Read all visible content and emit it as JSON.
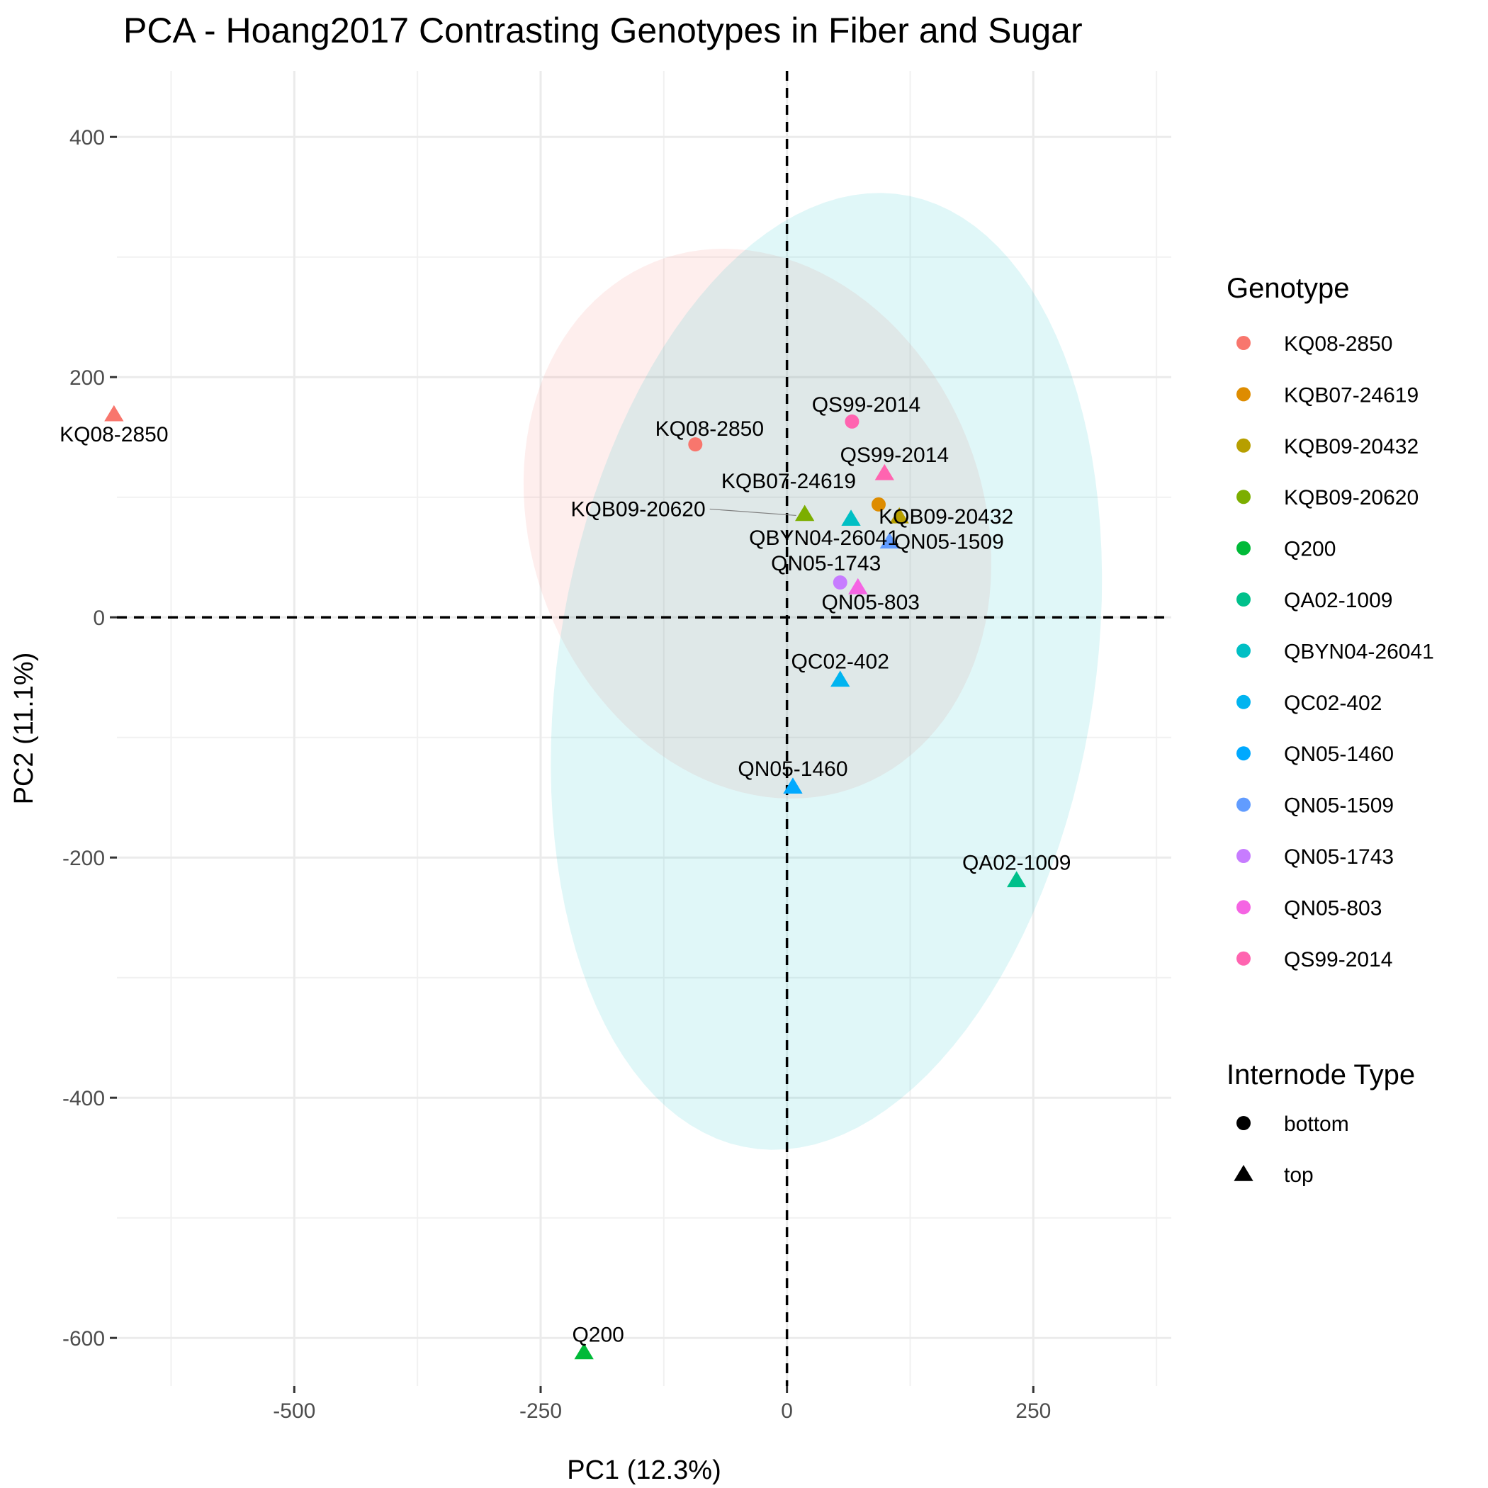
{
  "chart_data": {
    "type": "scatter",
    "title": "PCA - Hoang2017 Contrasting Genotypes in Fiber and Sugar",
    "xlabel": "PC1 (12.3%)",
    "ylabel": "PC2 (11.1%)",
    "xlim": [
      -680,
      390
    ],
    "ylim": [
      -640,
      455
    ],
    "x_ticks": [
      -500,
      -250,
      0,
      250
    ],
    "y_ticks": [
      -600,
      -400,
      -200,
      0,
      200,
      400
    ],
    "x_tick_labels": [
      "-500",
      "-250",
      "0",
      "250"
    ],
    "y_tick_labels": [
      "-600",
      "-400",
      "-200",
      "0",
      "200",
      "400"
    ],
    "grid": true,
    "reference_lines": {
      "x": 0,
      "y": 0,
      "style": "dashed"
    },
    "legend_position": "right",
    "genotype_legend": {
      "title": "Genotype",
      "entries": [
        {
          "name": "KQ08-2850",
          "color": "#F8766D"
        },
        {
          "name": "KQB07-24619",
          "color": "#DE8C00"
        },
        {
          "name": "KQB09-20432",
          "color": "#B79F00"
        },
        {
          "name": "KQB09-20620",
          "color": "#7CAE00"
        },
        {
          "name": "Q200",
          "color": "#00BA38"
        },
        {
          "name": "QA02-1009",
          "color": "#00C08B"
        },
        {
          "name": "QBYN04-26041",
          "color": "#00BFC4"
        },
        {
          "name": "QC02-402",
          "color": "#00B4F0"
        },
        {
          "name": "QN05-1460",
          "color": "#00A9FF"
        },
        {
          "name": "QN05-1509",
          "color": "#619CFF"
        },
        {
          "name": "QN05-1743",
          "color": "#C77CFF"
        },
        {
          "name": "QN05-803",
          "color": "#F564E3"
        },
        {
          "name": "QS99-2014",
          "color": "#FF64B0"
        }
      ]
    },
    "shape_legend": {
      "title": "Internode Type",
      "entries": [
        {
          "name": "bottom",
          "shape": "circle"
        },
        {
          "name": "top",
          "shape": "triangle"
        }
      ]
    },
    "ellipses": [
      {
        "group": "bottom",
        "color": "#F8766D",
        "center": [
          -30,
          78
        ],
        "rx": 250,
        "ry": 215,
        "rotation_deg": -38
      },
      {
        "group": "top",
        "color": "#00BFC4",
        "center": [
          40,
          -45
        ],
        "rx": 270,
        "ry": 405,
        "rotation_deg": -14
      }
    ],
    "points": [
      {
        "genotype": "KQ08-2850",
        "type": "top",
        "x": -683,
        "y": 169,
        "label": "KQ08-2850"
      },
      {
        "genotype": "KQ08-2850",
        "type": "bottom",
        "x": -93,
        "y": 144,
        "label": "KQ08-2850"
      },
      {
        "genotype": "QS99-2014",
        "type": "bottom",
        "x": 66,
        "y": 163,
        "label": "QS99-2014"
      },
      {
        "genotype": "QS99-2014",
        "type": "top",
        "x": 99,
        "y": 120,
        "label": "QS99-2014"
      },
      {
        "genotype": "KQB07-24619",
        "type": "bottom",
        "x": 93,
        "y": 94,
        "label": "KQB07-24619"
      },
      {
        "genotype": "KQB09-20620",
        "type": "top",
        "x": 18,
        "y": 86,
        "label": "KQB09-20620"
      },
      {
        "genotype": "QBYN04-26041",
        "type": "top",
        "x": 65,
        "y": 82,
        "label": "QBYN04-26041"
      },
      {
        "genotype": "KQB09-20432",
        "type": "top",
        "x": 114,
        "y": 84,
        "label": "KQB09-20432"
      },
      {
        "genotype": "QN05-1509",
        "type": "top",
        "x": 104,
        "y": 63,
        "label": "QN05-1509"
      },
      {
        "genotype": "QN05-1743",
        "type": "bottom",
        "x": 54,
        "y": 29,
        "label": "QN05-1743"
      },
      {
        "genotype": "QN05-803",
        "type": "top",
        "x": 72,
        "y": 25,
        "label": "QN05-803"
      },
      {
        "genotype": "QC02-402",
        "type": "top",
        "x": 54,
        "y": -52,
        "label": "QC02-402"
      },
      {
        "genotype": "QN05-1460",
        "type": "top",
        "x": 6,
        "y": -141,
        "label": "QN05-1460"
      },
      {
        "genotype": "QA02-1009",
        "type": "top",
        "x": 233,
        "y": -219,
        "label": "QA02-1009"
      },
      {
        "genotype": "Q200",
        "type": "top",
        "x": -206,
        "y": -612,
        "label": "Q200"
      }
    ]
  }
}
